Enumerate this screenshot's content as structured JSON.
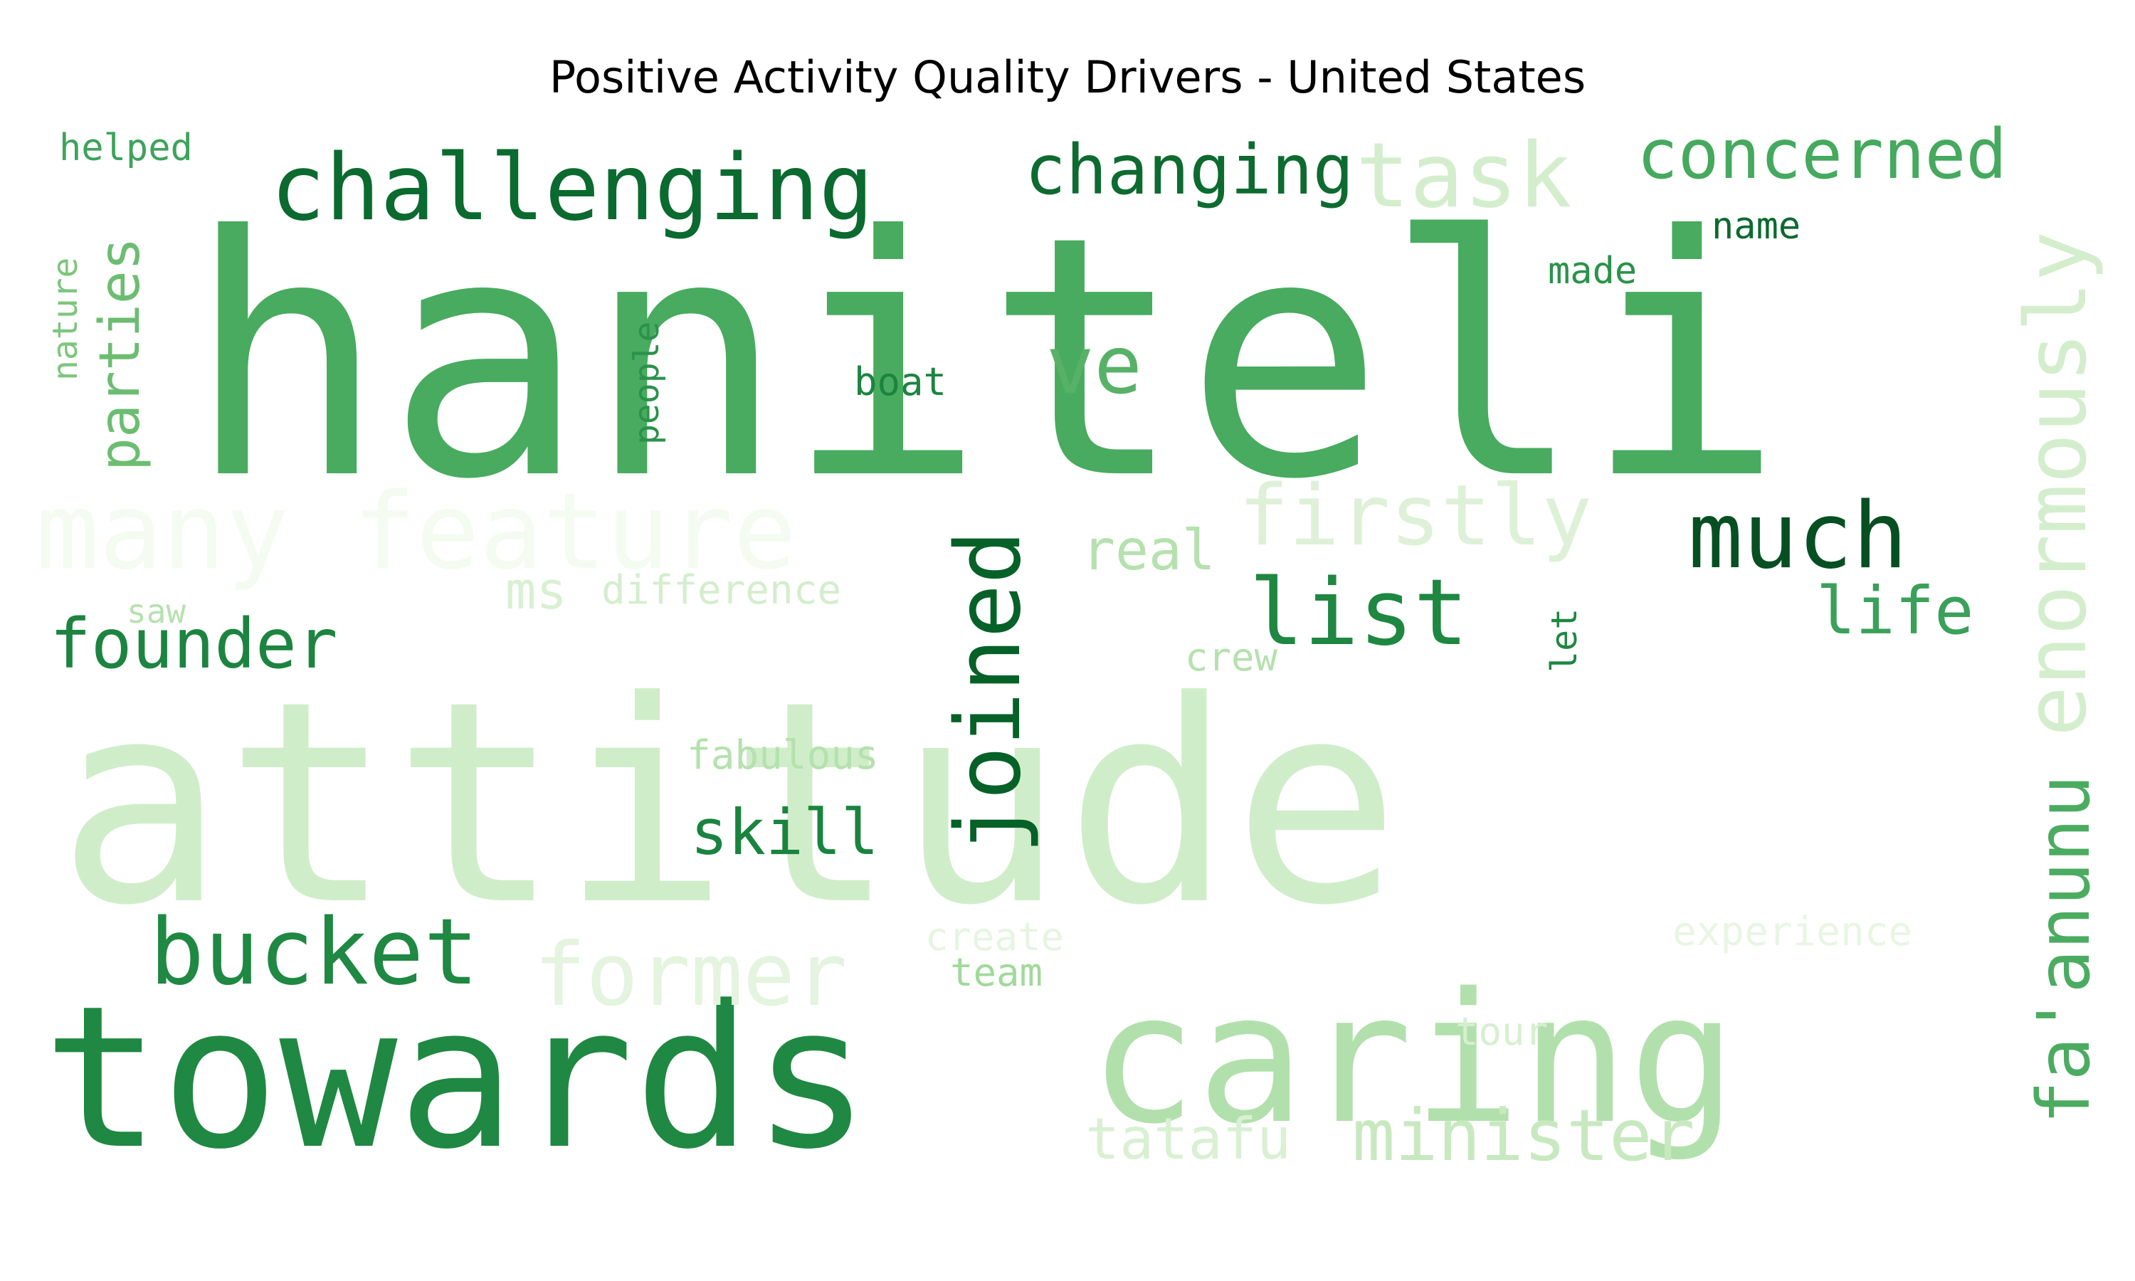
{
  "chart_data": {
    "type": "wordcloud",
    "title": "Positive Activity Quality Drivers - United States",
    "colormap": "Greens",
    "words": [
      {
        "text": "haniteli",
        "color": "#48ab5f"
      },
      {
        "text": "attitude",
        "color": "#d0edca"
      },
      {
        "text": "towards",
        "color": "#1f8842"
      },
      {
        "text": "caring",
        "color": "#b2e0ac"
      },
      {
        "text": "challenging",
        "color": "#0b6a2f"
      },
      {
        "text": "many feature",
        "color": "#f4fbf1"
      },
      {
        "text": "joined",
        "color": "#056128"
      },
      {
        "text": "bucket",
        "color": "#1f8842"
      },
      {
        "text": "former",
        "color": "#e4f4df"
      },
      {
        "text": "firstly",
        "color": "#def1d8"
      },
      {
        "text": "enormously",
        "color": "#d4eecd"
      },
      {
        "text": "fa'anunu",
        "color": "#4bac61"
      },
      {
        "text": "minister",
        "color": "#c8e9c0"
      },
      {
        "text": "much",
        "color": "#064f22"
      },
      {
        "text": "list",
        "color": "#1e8741"
      },
      {
        "text": "task",
        "color": "#d4eecd"
      },
      {
        "text": "concerned",
        "color": "#45a95e"
      },
      {
        "text": "changing",
        "color": "#0d6b30"
      },
      {
        "text": "founder",
        "color": "#1c8440"
      },
      {
        "text": "skill",
        "color": "#1a843f"
      },
      {
        "text": "ve",
        "color": "#57b167"
      },
      {
        "text": "tatafu",
        "color": "#d9f0d3"
      },
      {
        "text": "life",
        "color": "#3aa05a"
      },
      {
        "text": "parties",
        "color": "#6cbd71"
      },
      {
        "text": "real",
        "color": "#b5e1ae"
      },
      {
        "text": "ms",
        "color": "#d9f0d3"
      },
      {
        "text": "difference",
        "color": "#d4eecd"
      },
      {
        "text": "fabulous",
        "color": "#b5e1ae"
      },
      {
        "text": "create",
        "color": "#e6f5e1"
      },
      {
        "text": "experience",
        "color": "#e8f6e3"
      },
      {
        "text": "team",
        "color": "#a1d99b"
      },
      {
        "text": "tour",
        "color": "#d7efd1"
      },
      {
        "text": "helped",
        "color": "#3da35b"
      },
      {
        "text": "nature",
        "color": "#7cc67d"
      },
      {
        "text": "people",
        "color": "#2a924a"
      },
      {
        "text": "boat",
        "color": "#1c8440"
      },
      {
        "text": "made",
        "color": "#2a924a"
      },
      {
        "text": "name",
        "color": "#0b6a2f"
      },
      {
        "text": "saw",
        "color": "#b5e1ae"
      },
      {
        "text": "crew",
        "color": "#b5e1ae"
      },
      {
        "text": "let",
        "color": "#1e8741"
      }
    ]
  }
}
